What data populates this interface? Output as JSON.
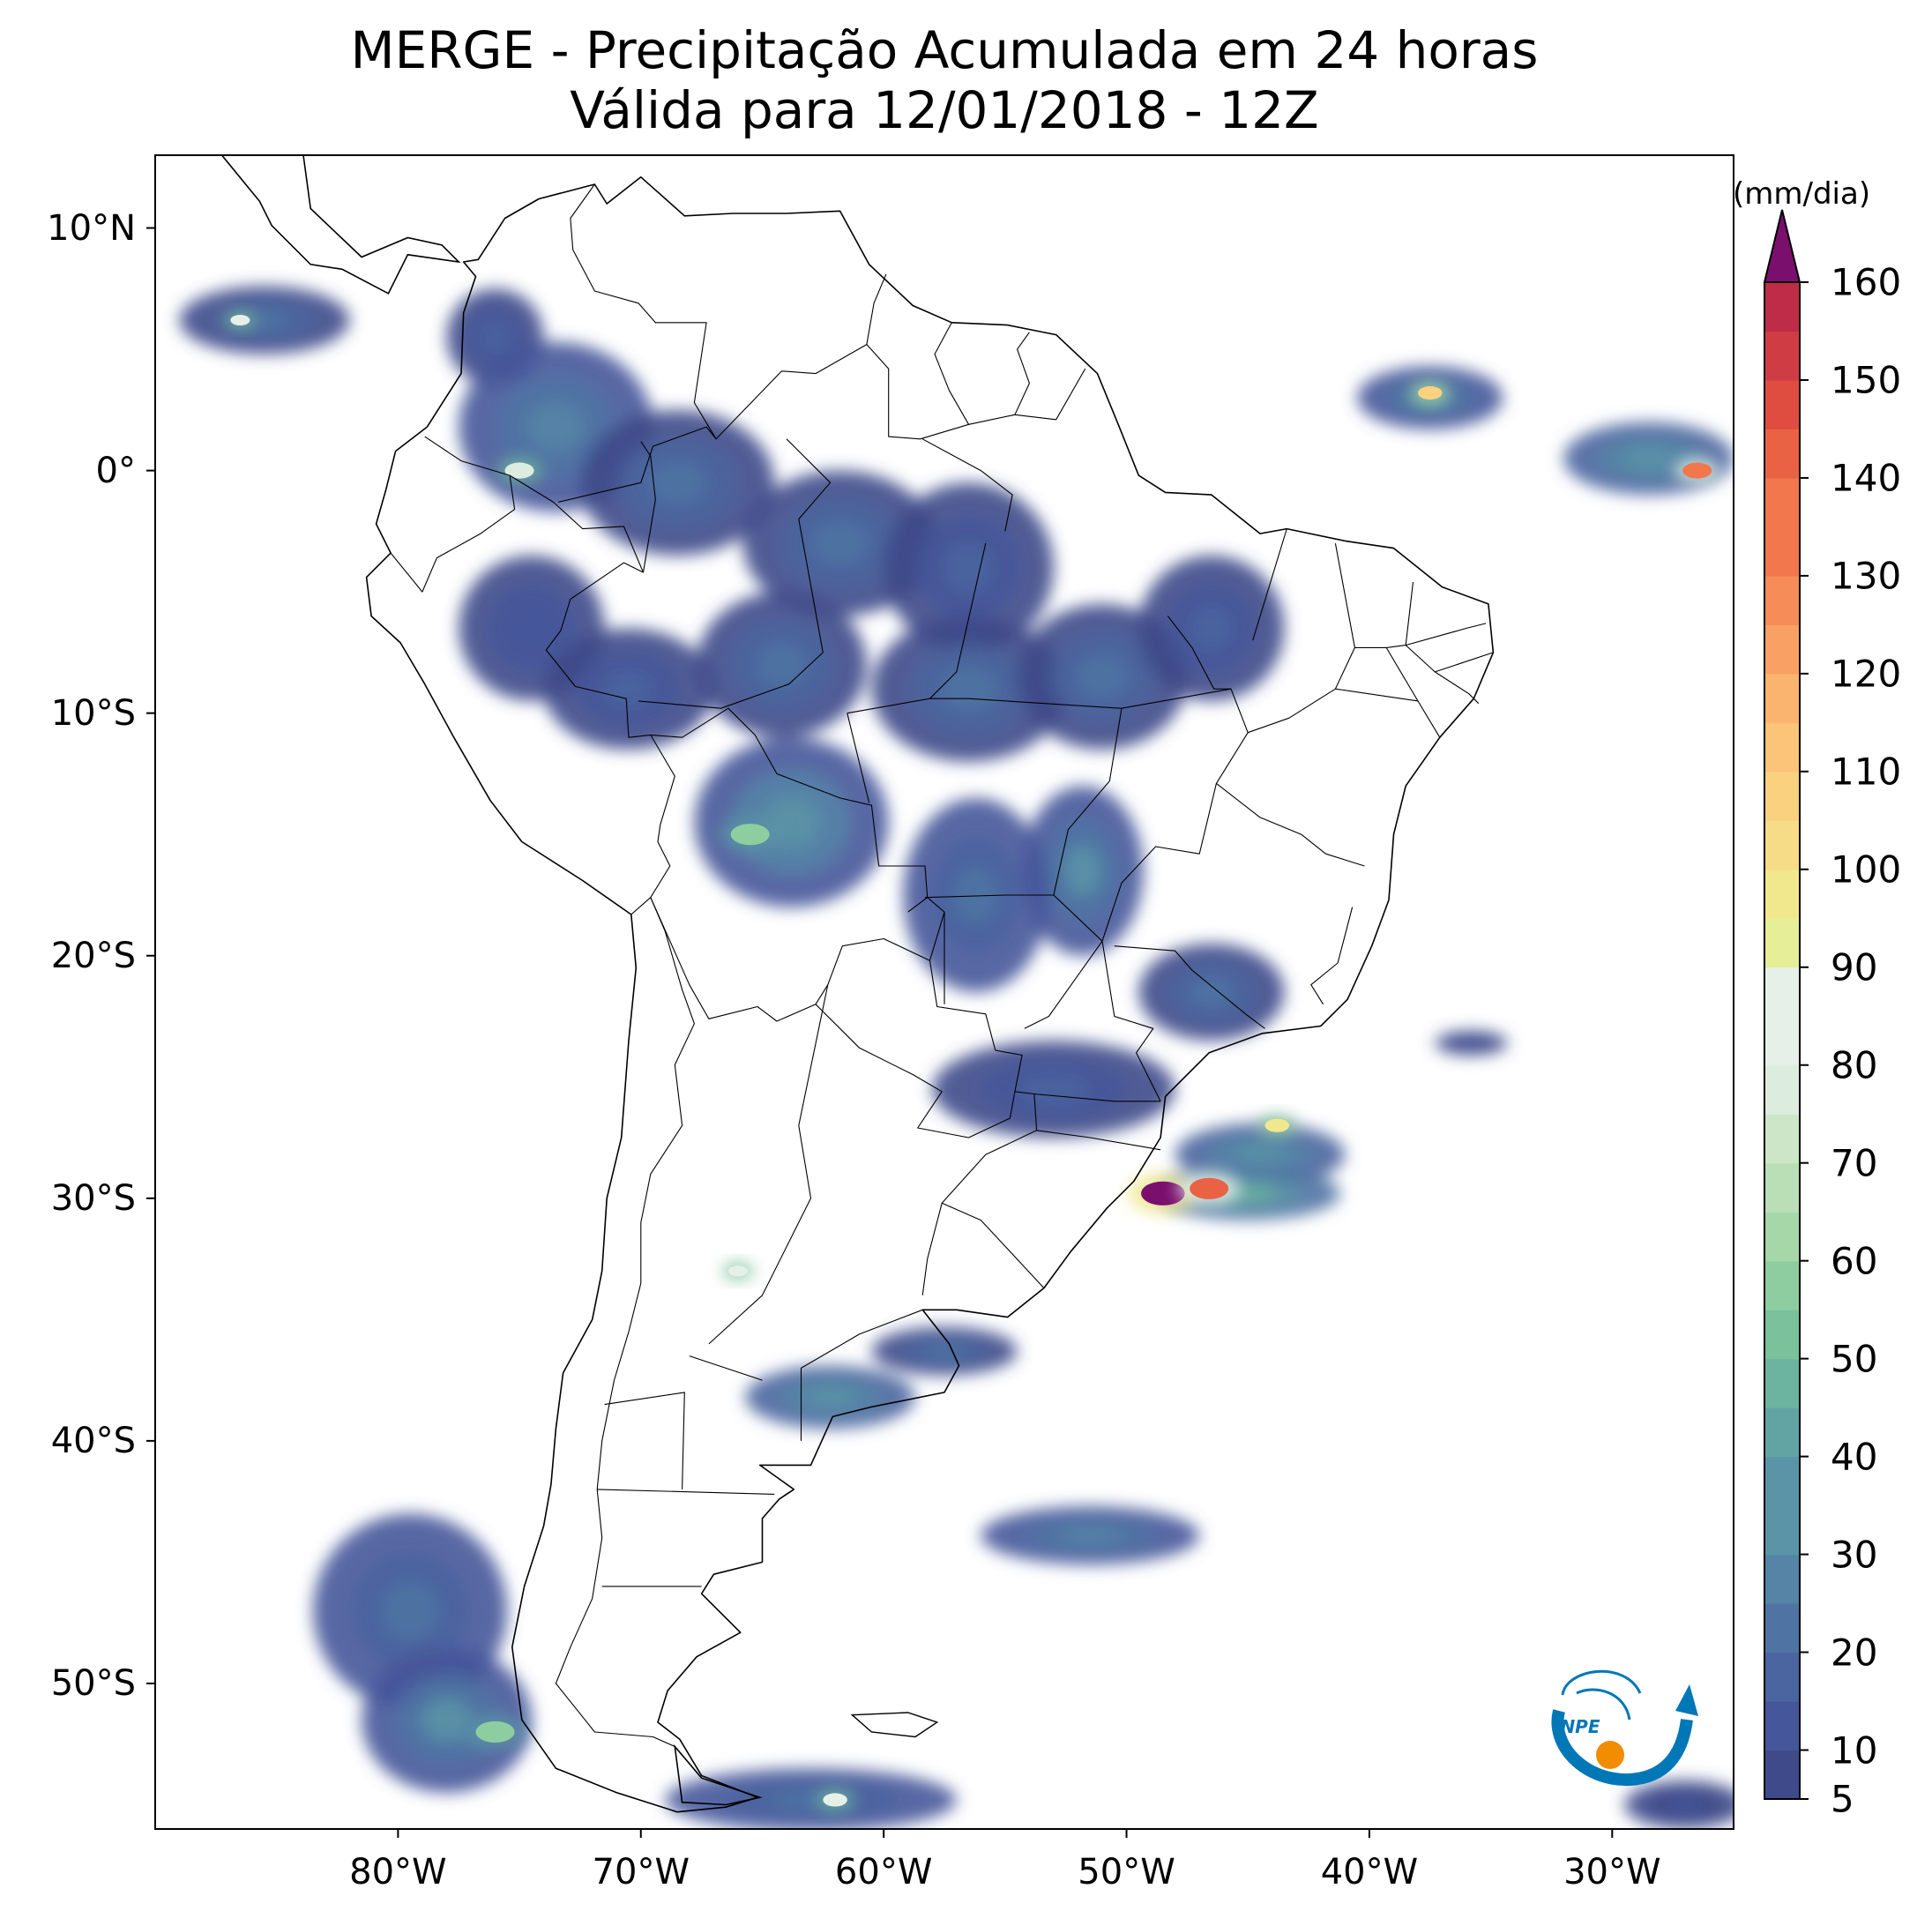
{
  "title": {
    "line1": "MERGE - Precipitação Acumulada em 24 horas",
    "line2": "Válida para 12/01/2018 - 12Z"
  },
  "map": {
    "projection": "plate-carree",
    "lon_range": [
      -90,
      -25
    ],
    "lat_range": [
      -56,
      13
    ],
    "lat_ticks": [
      {
        "value": 10,
        "label": "10°N"
      },
      {
        "value": 0,
        "label": "0°"
      },
      {
        "value": -10,
        "label": "10°S"
      },
      {
        "value": -20,
        "label": "20°S"
      },
      {
        "value": -30,
        "label": "30°S"
      },
      {
        "value": -40,
        "label": "40°S"
      },
      {
        "value": -50,
        "label": "50°S"
      }
    ],
    "lon_ticks": [
      {
        "value": -80,
        "label": "80°W"
      },
      {
        "value": -70,
        "label": "70°W"
      },
      {
        "value": -60,
        "label": "60°W"
      },
      {
        "value": -50,
        "label": "50°W"
      },
      {
        "value": -40,
        "label": "40°W"
      },
      {
        "value": -30,
        "label": "30°W"
      }
    ],
    "coastline_color": "#000000",
    "border_color": "#000000"
  },
  "colorbar": {
    "unit_label": "(mm/dia)",
    "extend": "max",
    "min": 5,
    "max": 160,
    "tick_labels": [
      "5",
      "10",
      "20",
      "30",
      "40",
      "50",
      "60",
      "70",
      "80",
      "90",
      "100",
      "110",
      "120",
      "130",
      "140",
      "150",
      "160"
    ],
    "tick_values": [
      5,
      10,
      20,
      30,
      40,
      50,
      60,
      70,
      80,
      90,
      100,
      110,
      120,
      130,
      140,
      150,
      160
    ],
    "colors": [
      "#3f4a8a",
      "#46569a",
      "#4a659f",
      "#4f74a3",
      "#5584a6",
      "#5b94a6",
      "#62a4a4",
      "#6cb3a0",
      "#7ac19c",
      "#8ecd9f",
      "#a5d7a8",
      "#badfb7",
      "#cde6c7",
      "#dcede0",
      "#e6f0e8",
      "#e6ee98",
      "#f1e88e",
      "#f7dc87",
      "#fad27f",
      "#fbc479",
      "#fbb470",
      "#f9a164",
      "#f68c57",
      "#f2774c",
      "#ea6244",
      "#df4d40",
      "#d03c44",
      "#bf2c47",
      "#a8204b"
    ],
    "over_color": "#7a0f6e"
  },
  "precip_regions": [
    {
      "lon": -85.5,
      "lat": 6.2,
      "rx": 3.5,
      "ry": 1.4,
      "mm": 22
    },
    {
      "lon": -76,
      "lat": 5.5,
      "rx": 2.0,
      "ry": 2.0,
      "mm": 15
    },
    {
      "lon": -73.5,
      "lat": 1.8,
      "rx": 4.0,
      "ry": 3.5,
      "mm": 25
    },
    {
      "lon": -68.5,
      "lat": -0.5,
      "rx": 4.0,
      "ry": 3.0,
      "mm": 20
    },
    {
      "lon": -61.8,
      "lat": -3.0,
      "rx": 4.0,
      "ry": 3.0,
      "mm": 22
    },
    {
      "lon": -56.5,
      "lat": -4.0,
      "rx": 3.5,
      "ry": 3.5,
      "mm": 18
    },
    {
      "lon": -74.5,
      "lat": -6.5,
      "rx": 3.0,
      "ry": 3.0,
      "mm": 14
    },
    {
      "lon": -70.5,
      "lat": -9.0,
      "rx": 3.5,
      "ry": 2.5,
      "mm": 18
    },
    {
      "lon": -64.2,
      "lat": -8.0,
      "rx": 3.5,
      "ry": 3.0,
      "mm": 22
    },
    {
      "lon": -63.8,
      "lat": -14.5,
      "rx": 4.0,
      "ry": 3.5,
      "mm": 32
    },
    {
      "lon": -56.5,
      "lat": -9.0,
      "rx": 4.0,
      "ry": 3.0,
      "mm": 20
    },
    {
      "lon": -51.0,
      "lat": -8.5,
      "rx": 3.5,
      "ry": 3.0,
      "mm": 22
    },
    {
      "lon": -46.5,
      "lat": -6.5,
      "rx": 3.0,
      "ry": 3.0,
      "mm": 16
    },
    {
      "lon": -51.8,
      "lat": -16.5,
      "rx": 2.5,
      "ry": 3.5,
      "mm": 30
    },
    {
      "lon": -56.2,
      "lat": -17.5,
      "rx": 3.0,
      "ry": 4.0,
      "mm": 24
    },
    {
      "lon": -46.5,
      "lat": -21.5,
      "rx": 3.0,
      "ry": 2.0,
      "mm": 20
    },
    {
      "lon": -53.0,
      "lat": -25.5,
      "rx": 5.0,
      "ry": 2.0,
      "mm": 18
    },
    {
      "lon": -44.5,
      "lat": -28.2,
      "rx": 3.5,
      "ry": 1.3,
      "mm": 35
    },
    {
      "lon": -45.0,
      "lat": -29.8,
      "rx": 3.8,
      "ry": 1.1,
      "mm": 45
    },
    {
      "lon": -37.5,
      "lat": 3.0,
      "rx": 3.0,
      "ry": 1.3,
      "mm": 30
    },
    {
      "lon": -28.5,
      "lat": 0.5,
      "rx": 3.5,
      "ry": 1.5,
      "mm": 35
    },
    {
      "lon": -62.2,
      "lat": -38.2,
      "rx": 3.5,
      "ry": 1.3,
      "mm": 35
    },
    {
      "lon": -57.5,
      "lat": -36.3,
      "rx": 3.0,
      "ry": 1.0,
      "mm": 20
    },
    {
      "lon": -51.5,
      "lat": -43.9,
      "rx": 4.5,
      "ry": 1.2,
      "mm": 26
    },
    {
      "lon": -79.5,
      "lat": -47.0,
      "rx": 4.0,
      "ry": 4.0,
      "mm": 24
    },
    {
      "lon": -78.0,
      "lat": -51.5,
      "rx": 3.5,
      "ry": 3.0,
      "mm": 30
    },
    {
      "lon": -63.0,
      "lat": -54.8,
      "rx": 6.0,
      "ry": 1.3,
      "mm": 24
    },
    {
      "lon": -35.8,
      "lat": -23.6,
      "rx": 1.5,
      "ry": 0.5,
      "mm": 12
    },
    {
      "lon": -27.0,
      "lat": -55.0,
      "rx": 2.5,
      "ry": 1.0,
      "mm": 12
    }
  ],
  "precip_hotspots": [
    {
      "lon": -75.0,
      "lat": 0.0,
      "r": 0.6,
      "mm": 75
    },
    {
      "lon": -65.5,
      "lat": -15.0,
      "r": 0.8,
      "mm": 58
    },
    {
      "lon": -48.5,
      "lat": -29.8,
      "r": 0.9,
      "mm": 160
    },
    {
      "lon": -46.6,
      "lat": -29.6,
      "r": 0.8,
      "mm": 140
    },
    {
      "lon": -43.8,
      "lat": -27.0,
      "r": 0.5,
      "mm": 95
    },
    {
      "lon": -37.5,
      "lat": 3.2,
      "r": 0.5,
      "mm": 105
    },
    {
      "lon": -26.5,
      "lat": 0.0,
      "r": 0.6,
      "mm": 130
    },
    {
      "lon": -86.5,
      "lat": 6.2,
      "r": 0.4,
      "mm": 85
    },
    {
      "lon": -66.0,
      "lat": -33.0,
      "r": 0.4,
      "mm": 85
    },
    {
      "lon": -76.0,
      "lat": -52.0,
      "r": 0.8,
      "mm": 55
    },
    {
      "lon": -62.0,
      "lat": -54.8,
      "r": 0.5,
      "mm": 80
    }
  ]
}
